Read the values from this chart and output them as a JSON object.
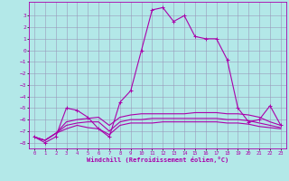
{
  "xlabel": "Windchill (Refroidissement éolien,°C)",
  "background_color": "#b3e8e8",
  "grid_color": "#9999bb",
  "line_color": "#aa00aa",
  "x": [
    0,
    1,
    2,
    3,
    4,
    5,
    6,
    7,
    8,
    9,
    10,
    11,
    12,
    13,
    14,
    15,
    16,
    17,
    18,
    19,
    20,
    21,
    22,
    23
  ],
  "line1": [
    -7.5,
    -8.0,
    -7.5,
    -5.0,
    -5.2,
    -5.8,
    -6.8,
    -7.5,
    -4.5,
    -3.5,
    0.0,
    3.5,
    3.7,
    2.5,
    3.0,
    1.2,
    1.0,
    1.0,
    -0.8,
    -5.0,
    -6.2,
    -6.0,
    -4.8,
    -6.5
  ],
  "line2": [
    -7.5,
    -7.8,
    -7.2,
    -6.2,
    -6.0,
    -5.9,
    -5.8,
    -6.5,
    -5.8,
    -5.6,
    -5.5,
    -5.5,
    -5.5,
    -5.5,
    -5.5,
    -5.4,
    -5.4,
    -5.4,
    -5.5,
    -5.5,
    -5.6,
    -5.8,
    -6.2,
    -6.5
  ],
  "line3": [
    -7.5,
    -7.8,
    -7.2,
    -6.5,
    -6.3,
    -6.2,
    -6.2,
    -7.0,
    -6.2,
    -6.0,
    -6.0,
    -5.9,
    -5.9,
    -5.9,
    -5.9,
    -5.9,
    -5.9,
    -5.9,
    -6.0,
    -6.0,
    -6.1,
    -6.3,
    -6.5,
    -6.7
  ],
  "line4": [
    -7.5,
    -7.8,
    -7.2,
    -6.8,
    -6.5,
    -6.7,
    -6.8,
    -7.3,
    -6.5,
    -6.3,
    -6.3,
    -6.3,
    -6.2,
    -6.2,
    -6.2,
    -6.2,
    -6.2,
    -6.2,
    -6.3,
    -6.3,
    -6.4,
    -6.6,
    -6.7,
    -6.8
  ],
  "ylim": [
    -8.5,
    4.2
  ],
  "yticks": [
    3,
    2,
    1,
    0,
    -1,
    -2,
    -3,
    -4,
    -5,
    -6,
    -7,
    -8
  ],
  "xticks": [
    0,
    1,
    2,
    3,
    4,
    5,
    6,
    7,
    8,
    9,
    10,
    11,
    12,
    13,
    14,
    15,
    16,
    17,
    18,
    19,
    20,
    21,
    22,
    23
  ]
}
